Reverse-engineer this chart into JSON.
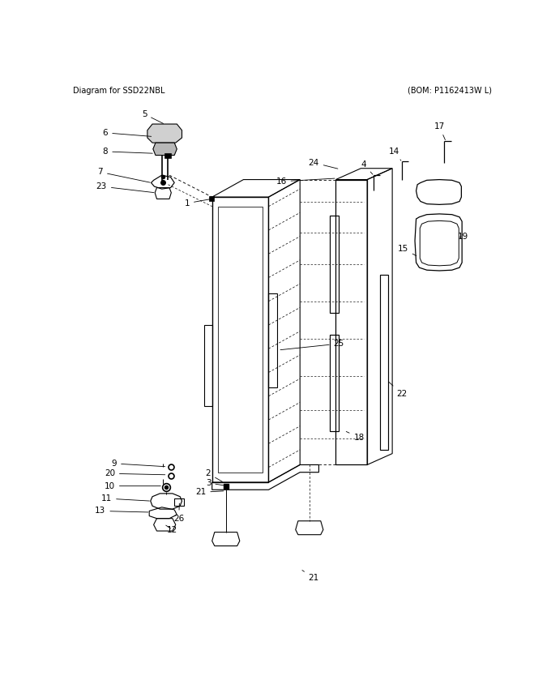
{
  "bg_color": "#ffffff",
  "fig_width": 6.8,
  "fig_height": 8.39,
  "dpi": 100,
  "title_left": "Diagram for SSD22NBL",
  "title_right": "(BOM: P1162413W L)",
  "title_fontsize": 7.0
}
